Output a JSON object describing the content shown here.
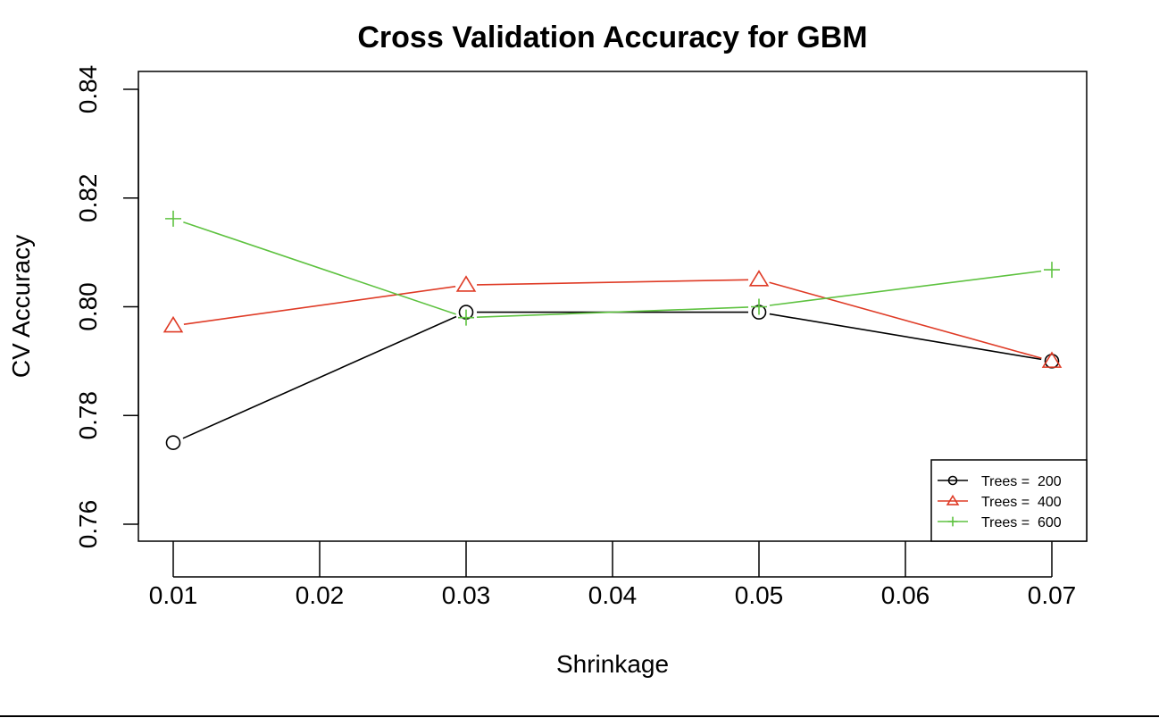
{
  "chart_data": {
    "type": "line",
    "title": "Cross Validation Accuracy for GBM",
    "xlabel": "Shrinkage",
    "ylabel": "CV Accuracy",
    "xlim": [
      0.01,
      0.07
    ],
    "ylim": [
      0.76,
      0.84
    ],
    "x_ticks": [
      "0.01",
      "0.02",
      "0.03",
      "0.04",
      "0.05",
      "0.06",
      "0.07"
    ],
    "y_ticks": [
      "0.76",
      "0.78",
      "0.80",
      "0.82",
      "0.84"
    ],
    "grid": false,
    "legend_position": "bottom-right",
    "x": [
      0.01,
      0.03,
      0.05,
      0.07
    ],
    "series": [
      {
        "name": "Trees =  200",
        "color": "#000000",
        "marker": "circle",
        "values": [
          0.775,
          0.799,
          0.799,
          0.79
        ]
      },
      {
        "name": "Trees =  400",
        "color": "#df3b26",
        "marker": "triangle",
        "values": [
          0.7965,
          0.804,
          0.805,
          0.79
        ]
      },
      {
        "name": "Trees =  600",
        "color": "#5ec240",
        "marker": "plus",
        "values": [
          0.8162,
          0.798,
          0.8,
          0.8068
        ]
      }
    ]
  }
}
